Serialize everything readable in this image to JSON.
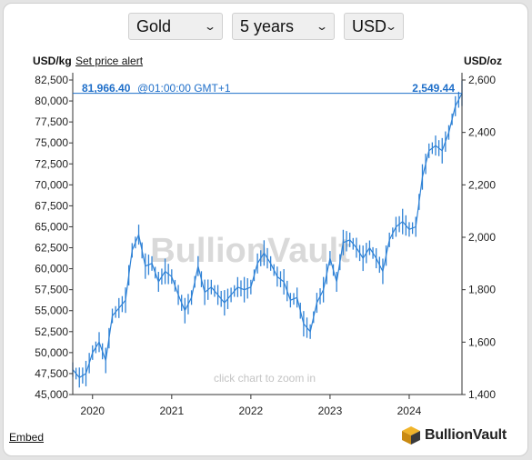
{
  "controls": {
    "metal": "Gold",
    "period": "5 years",
    "currency": "USD"
  },
  "header": {
    "unit_left": "USD/kg",
    "alert_link": "Set price alert",
    "unit_right": "USD/oz",
    "current_kg": "81,966.40",
    "timestamp": "@01:00:00 GMT+1",
    "current_oz": "2,549.44"
  },
  "footer": {
    "embed": "Embed",
    "brand": "BullionVault"
  },
  "watermark": "BullionVault",
  "zoom_hint": "click chart to zoom in",
  "colors": {
    "series": "#2f82d6",
    "current_line": "#1f6fc9",
    "axis": "#333333",
    "background": "#e4e4e4"
  },
  "chart_data": {
    "type": "line",
    "series": [
      {
        "values": [
          [
            "2019-10",
            1495
          ],
          [
            "2019-11",
            1465
          ],
          [
            "2019-12",
            1480
          ],
          [
            "2020-01",
            1560
          ],
          [
            "2020-02",
            1600
          ],
          [
            "2020-03",
            1530
          ],
          [
            "2020-04",
            1700
          ],
          [
            "2020-05",
            1730
          ],
          [
            "2020-06",
            1760
          ],
          [
            "2020-07",
            1950
          ],
          [
            "2020-08",
            2010
          ],
          [
            "2020-09",
            1890
          ],
          [
            "2020-10",
            1900
          ],
          [
            "2020-11",
            1830
          ],
          [
            "2020-12",
            1870
          ],
          [
            "2021-01",
            1850
          ],
          [
            "2021-02",
            1780
          ],
          [
            "2021-03",
            1720
          ],
          [
            "2021-04",
            1770
          ],
          [
            "2021-05",
            1890
          ],
          [
            "2021-06",
            1790
          ],
          [
            "2021-07",
            1810
          ],
          [
            "2021-08",
            1780
          ],
          [
            "2021-09",
            1750
          ],
          [
            "2021-10",
            1780
          ],
          [
            "2021-11",
            1810
          ],
          [
            "2021-12",
            1800
          ],
          [
            "2022-01",
            1810
          ],
          [
            "2022-02",
            1900
          ],
          [
            "2022-03",
            1940
          ],
          [
            "2022-04",
            1900
          ],
          [
            "2022-05",
            1850
          ],
          [
            "2022-06",
            1830
          ],
          [
            "2022-07",
            1760
          ],
          [
            "2022-08",
            1770
          ],
          [
            "2022-09",
            1670
          ],
          [
            "2022-10",
            1640
          ],
          [
            "2022-11",
            1750
          ],
          [
            "2022-12",
            1800
          ],
          [
            "2023-01",
            1920
          ],
          [
            "2023-02",
            1830
          ],
          [
            "2023-03",
            1980
          ],
          [
            "2023-04",
            1990
          ],
          [
            "2023-05",
            1960
          ],
          [
            "2023-06",
            1920
          ],
          [
            "2023-07",
            1960
          ],
          [
            "2023-08",
            1920
          ],
          [
            "2023-09",
            1870
          ],
          [
            "2023-10",
            1990
          ],
          [
            "2023-11",
            2040
          ],
          [
            "2023-12",
            2060
          ],
          [
            "2024-01",
            2030
          ],
          [
            "2024-02",
            2040
          ],
          [
            "2024-03",
            2230
          ],
          [
            "2024-04",
            2330
          ],
          [
            "2024-05",
            2350
          ],
          [
            "2024-06",
            2330
          ],
          [
            "2024-07",
            2400
          ],
          [
            "2024-08",
            2500
          ],
          [
            "2024-09",
            2549.44
          ]
        ]
      }
    ],
    "y_left": {
      "ticks": [
        "45,000",
        "47,500",
        "50,000",
        "52,500",
        "55,000",
        "57,500",
        "60,000",
        "62,500",
        "65,000",
        "67,500",
        "70,000",
        "72,500",
        "75,000",
        "77,500",
        "80,000",
        "82,500"
      ],
      "range": [
        45000,
        82500
      ]
    },
    "y_right": {
      "ticks": [
        "1,400",
        "1,600",
        "1,800",
        "2,000",
        "2,200",
        "2,400",
        "2,600"
      ],
      "range": [
        1400,
        2600
      ]
    },
    "x_ticks": [
      "2020",
      "2021",
      "2022",
      "2023",
      "2024"
    ],
    "x_range": [
      "2019-10",
      "2024-09"
    ],
    "grid": false,
    "current_value": 2549.44
  }
}
